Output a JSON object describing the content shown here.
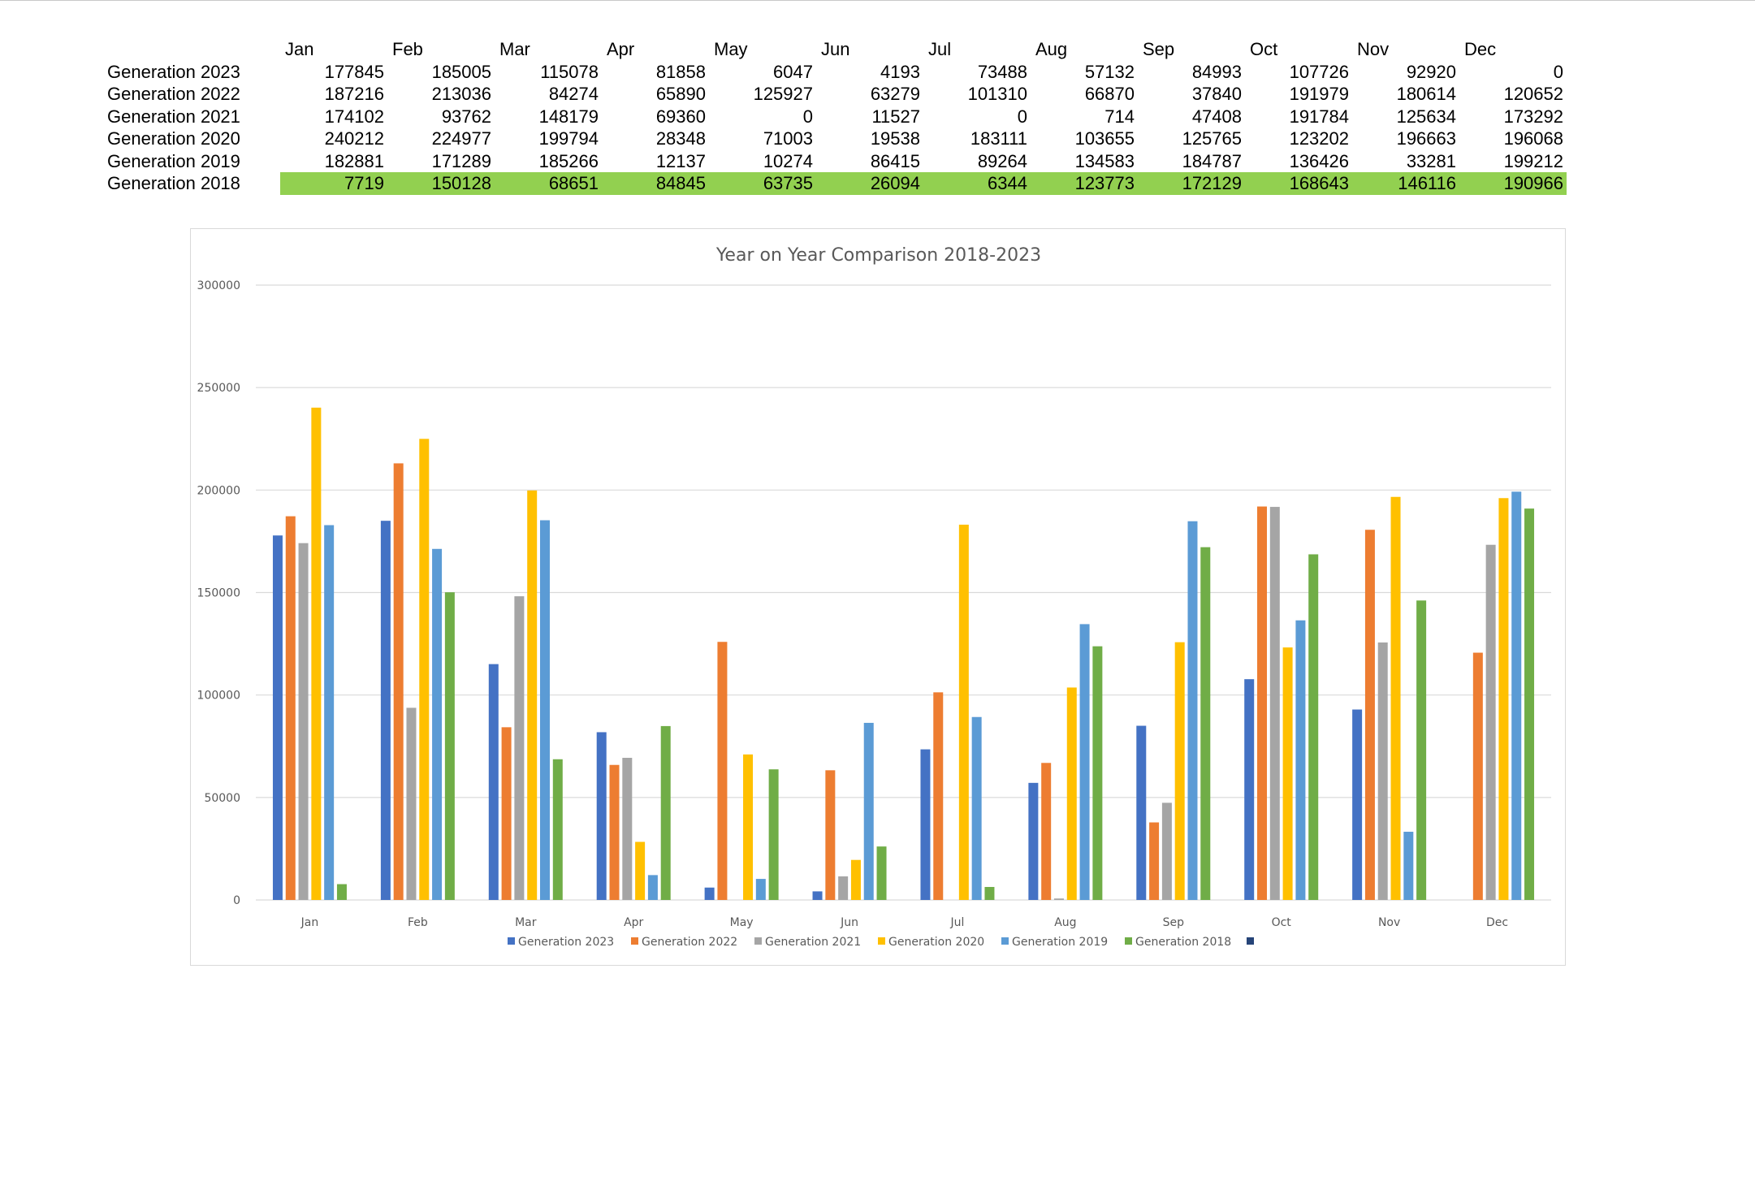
{
  "table": {
    "columns": [
      "Jan",
      "Feb",
      "Mar",
      "Apr",
      "May",
      "Jun",
      "Jul",
      "Aug",
      "Sep",
      "Oct",
      "Nov",
      "Dec"
    ],
    "rows": [
      {
        "label": "Generation 2023",
        "values": [
          177845,
          185005,
          115078,
          81858,
          6047,
          4193,
          73488,
          57132,
          84993,
          107726,
          92920,
          0
        ]
      },
      {
        "label": "Generation 2022",
        "values": [
          187216,
          213036,
          84274,
          65890,
          125927,
          63279,
          101310,
          66870,
          37840,
          191979,
          180614,
          120652
        ]
      },
      {
        "label": "Generation 2021",
        "values": [
          174102,
          93762,
          148179,
          69360,
          0,
          11527,
          0,
          714,
          47408,
          191784,
          125634,
          173292
        ]
      },
      {
        "label": "Generation 2020",
        "values": [
          240212,
          224977,
          199794,
          28348,
          71003,
          19538,
          183111,
          103655,
          125765,
          123202,
          196663,
          196068
        ]
      },
      {
        "label": "Generation 2019",
        "values": [
          182881,
          171289,
          185266,
          12137,
          10274,
          86415,
          89264,
          134583,
          184787,
          136426,
          33281,
          199212
        ]
      },
      {
        "label": "Generation 2018",
        "values": [
          7719,
          150128,
          68651,
          84845,
          63735,
          26094,
          6344,
          123773,
          172129,
          168643,
          146116,
          190966
        ],
        "highlight": true
      }
    ]
  },
  "chart_data": {
    "type": "bar",
    "title": "Year on Year Comparison 2018-2023",
    "xlabel": "",
    "ylabel": "",
    "ylim": [
      0,
      300000
    ],
    "yticks": [
      0,
      50000,
      100000,
      150000,
      200000,
      250000,
      300000
    ],
    "grid": true,
    "legend_position": "bottom",
    "categories": [
      "Jan",
      "Feb",
      "Mar",
      "Apr",
      "May",
      "Jun",
      "Jul",
      "Aug",
      "Sep",
      "Oct",
      "Nov",
      "Dec"
    ],
    "series": [
      {
        "name": "Generation 2023",
        "color": "#4472c4",
        "values": [
          177845,
          185005,
          115078,
          81858,
          6047,
          4193,
          73488,
          57132,
          84993,
          107726,
          92920,
          0
        ]
      },
      {
        "name": "Generation 2022",
        "color": "#ed7d31",
        "values": [
          187216,
          213036,
          84274,
          65890,
          125927,
          63279,
          101310,
          66870,
          37840,
          191979,
          180614,
          120652
        ]
      },
      {
        "name": "Generation 2021",
        "color": "#a5a5a5",
        "values": [
          174102,
          93762,
          148179,
          69360,
          0,
          11527,
          0,
          714,
          47408,
          191784,
          125634,
          173292
        ]
      },
      {
        "name": "Generation 2020",
        "color": "#ffc000",
        "values": [
          240212,
          224977,
          199794,
          28348,
          71003,
          19538,
          183111,
          103655,
          125765,
          123202,
          196663,
          196068
        ]
      },
      {
        "name": "Generation 2019",
        "color": "#5b9bd5",
        "values": [
          182881,
          171289,
          185266,
          12137,
          10274,
          86415,
          89264,
          134583,
          184787,
          136426,
          33281,
          199212
        ]
      },
      {
        "name": "Generation 2018",
        "color": "#70ad47",
        "values": [
          7719,
          150128,
          68651,
          84845,
          63735,
          26094,
          6344,
          123773,
          172129,
          168643,
          146116,
          190966
        ]
      }
    ],
    "legend_extra_marker_color": "#264478"
  }
}
